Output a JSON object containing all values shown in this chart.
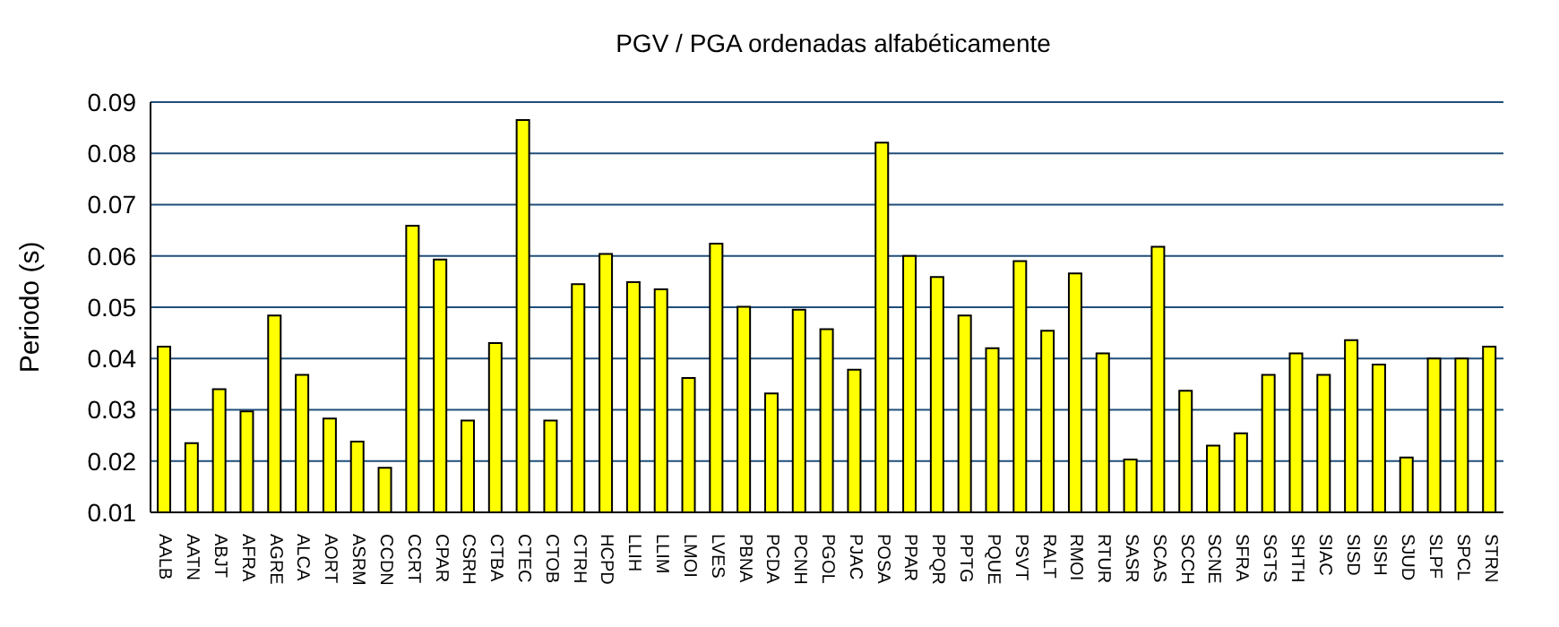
{
  "chart_data": {
    "type": "bar",
    "title": "PGV / PGA ordenadas alfabéticamente",
    "ylabel": "Periodo (s)",
    "categories": [
      "AALB",
      "AATN",
      "ABJT",
      "AFRA",
      "AGRE",
      "ALCA",
      "AORT",
      "ASRM",
      "CCDN",
      "CCRT",
      "CPAR",
      "CSRH",
      "CTBA",
      "CTEC",
      "CTOB",
      "CTRH",
      "HCPD",
      "LLIH",
      "LLIM",
      "LMOI",
      "LVES",
      "PBNA",
      "PCDA",
      "PCNH",
      "PGOL",
      "PJAC",
      "POSA",
      "PPAR",
      "PPQR",
      "PPTG",
      "PQUE",
      "PSVT",
      "RALT",
      "RMOI",
      "RTUR",
      "SASR",
      "SCAS",
      "SCCH",
      "SCNE",
      "SFRA",
      "SGTS",
      "SHTH",
      "SIAC",
      "SISD",
      "SISH",
      "SJUD",
      "SLPF",
      "SPCL",
      "STRN"
    ],
    "values": [
      0.0423,
      0.0235,
      0.034,
      0.0297,
      0.0484,
      0.0368,
      0.0283,
      0.0238,
      0.0187,
      0.0659,
      0.0593,
      0.0279,
      0.043,
      0.0865,
      0.0279,
      0.0545,
      0.0604,
      0.0549,
      0.0535,
      0.0362,
      0.0624,
      0.0501,
      0.0332,
      0.0495,
      0.0457,
      0.0378,
      0.0821,
      0.06,
      0.0559,
      0.0484,
      0.042,
      0.059,
      0.0454,
      0.0566,
      0.041,
      0.0203,
      0.0618,
      0.0337,
      0.023,
      0.0254,
      0.0368,
      0.041,
      0.0368,
      0.0436,
      0.0388,
      0.0207,
      0.04,
      0.04,
      0.0423
    ],
    "color": "#ffff00",
    "ylim": [
      0.01,
      0.09
    ],
    "yticks": [
      0.01,
      0.02,
      0.03,
      0.04,
      0.05,
      0.06,
      0.07,
      0.08,
      0.09
    ],
    "grid": "y"
  }
}
